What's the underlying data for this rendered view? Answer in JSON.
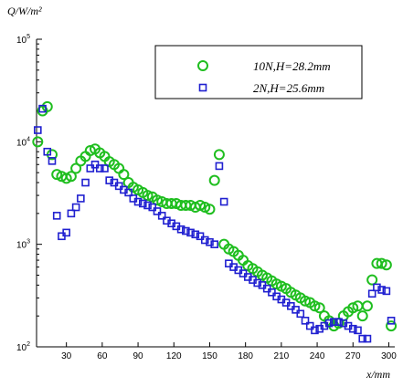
{
  "chart_data": {
    "type": "scatter",
    "ylabel": "Q/W/m²",
    "xlabel": "x/mm",
    "xlim": [
      5,
      305
    ],
    "ylim": [
      100,
      100000
    ],
    "yscale": "log",
    "x_ticks": [
      30,
      60,
      90,
      120,
      150,
      180,
      210,
      240,
      270,
      300
    ],
    "x_tick_labels": [
      "30",
      "60",
      "90",
      "120",
      "150",
      "180",
      "210",
      "240",
      "270",
      "300"
    ],
    "y_ticks": [
      100,
      1000,
      10000,
      100000
    ],
    "y_tick_labels": [
      {
        "base": "10",
        "exp": "2"
      },
      {
        "base": "10",
        "exp": "3"
      },
      {
        "base": "10",
        "exp": "4"
      },
      {
        "base": "10",
        "exp": "5"
      }
    ],
    "legend": {
      "position": "top-right"
    },
    "series": [
      {
        "name": "10N,H=28.2mm",
        "marker": "circle",
        "color": "#1fbe1f",
        "x": [
          6,
          10,
          14,
          18,
          22,
          26,
          30,
          34,
          38,
          42,
          46,
          50,
          54,
          58,
          62,
          66,
          70,
          74,
          78,
          82,
          86,
          90,
          94,
          98,
          102,
          106,
          110,
          114,
          118,
          122,
          126,
          130,
          134,
          138,
          142,
          146,
          150,
          154,
          158,
          162,
          166,
          170,
          174,
          178,
          182,
          186,
          190,
          194,
          198,
          202,
          206,
          210,
          214,
          218,
          222,
          226,
          230,
          234,
          238,
          242,
          246,
          250,
          254,
          258,
          262,
          266,
          270,
          274,
          278,
          282,
          286,
          290,
          294,
          298,
          302
        ],
        "y": [
          10000,
          20000,
          22000,
          7500,
          4800,
          4600,
          4400,
          4600,
          5500,
          6500,
          7200,
          8200,
          8500,
          7800,
          7200,
          6400,
          6000,
          5500,
          4800,
          4000,
          3600,
          3400,
          3200,
          3000,
          2900,
          2700,
          2600,
          2500,
          2500,
          2500,
          2400,
          2400,
          2400,
          2300,
          2400,
          2300,
          2200,
          4200,
          7500,
          1000,
          900,
          850,
          780,
          700,
          620,
          580,
          540,
          500,
          470,
          440,
          410,
          390,
          370,
          340,
          320,
          300,
          280,
          270,
          250,
          240,
          200,
          180,
          160,
          170,
          200,
          220,
          240,
          250,
          200,
          250,
          450,
          650,
          650,
          630,
          160
        ]
      },
      {
        "name": "2N,H=25.6mm",
        "marker": "square",
        "color": "#2020d0",
        "x": [
          6,
          10,
          14,
          18,
          22,
          26,
          30,
          34,
          38,
          42,
          46,
          50,
          54,
          58,
          62,
          66,
          70,
          74,
          78,
          82,
          86,
          90,
          94,
          98,
          102,
          106,
          110,
          114,
          118,
          122,
          126,
          130,
          134,
          138,
          142,
          146,
          150,
          154,
          158,
          162,
          166,
          170,
          174,
          178,
          182,
          186,
          190,
          194,
          198,
          202,
          206,
          210,
          214,
          218,
          222,
          226,
          230,
          234,
          238,
          242,
          246,
          250,
          254,
          258,
          262,
          266,
          270,
          274,
          278,
          282,
          286,
          290,
          294,
          298,
          302
        ],
        "y": [
          13000,
          21000,
          8000,
          6500,
          1900,
          1200,
          1300,
          2000,
          2300,
          2800,
          4000,
          5500,
          6000,
          5500,
          5500,
          4200,
          4000,
          3700,
          3400,
          3200,
          2800,
          2600,
          2500,
          2400,
          2300,
          2100,
          1900,
          1700,
          1600,
          1500,
          1400,
          1350,
          1300,
          1250,
          1200,
          1100,
          1050,
          1000,
          5800,
          2600,
          650,
          600,
          560,
          520,
          480,
          450,
          420,
          400,
          370,
          340,
          310,
          290,
          270,
          250,
          230,
          210,
          180,
          160,
          145,
          150,
          160,
          170,
          175,
          175,
          170,
          160,
          150,
          145,
          120,
          120,
          330,
          380,
          360,
          350,
          180
        ]
      }
    ]
  }
}
